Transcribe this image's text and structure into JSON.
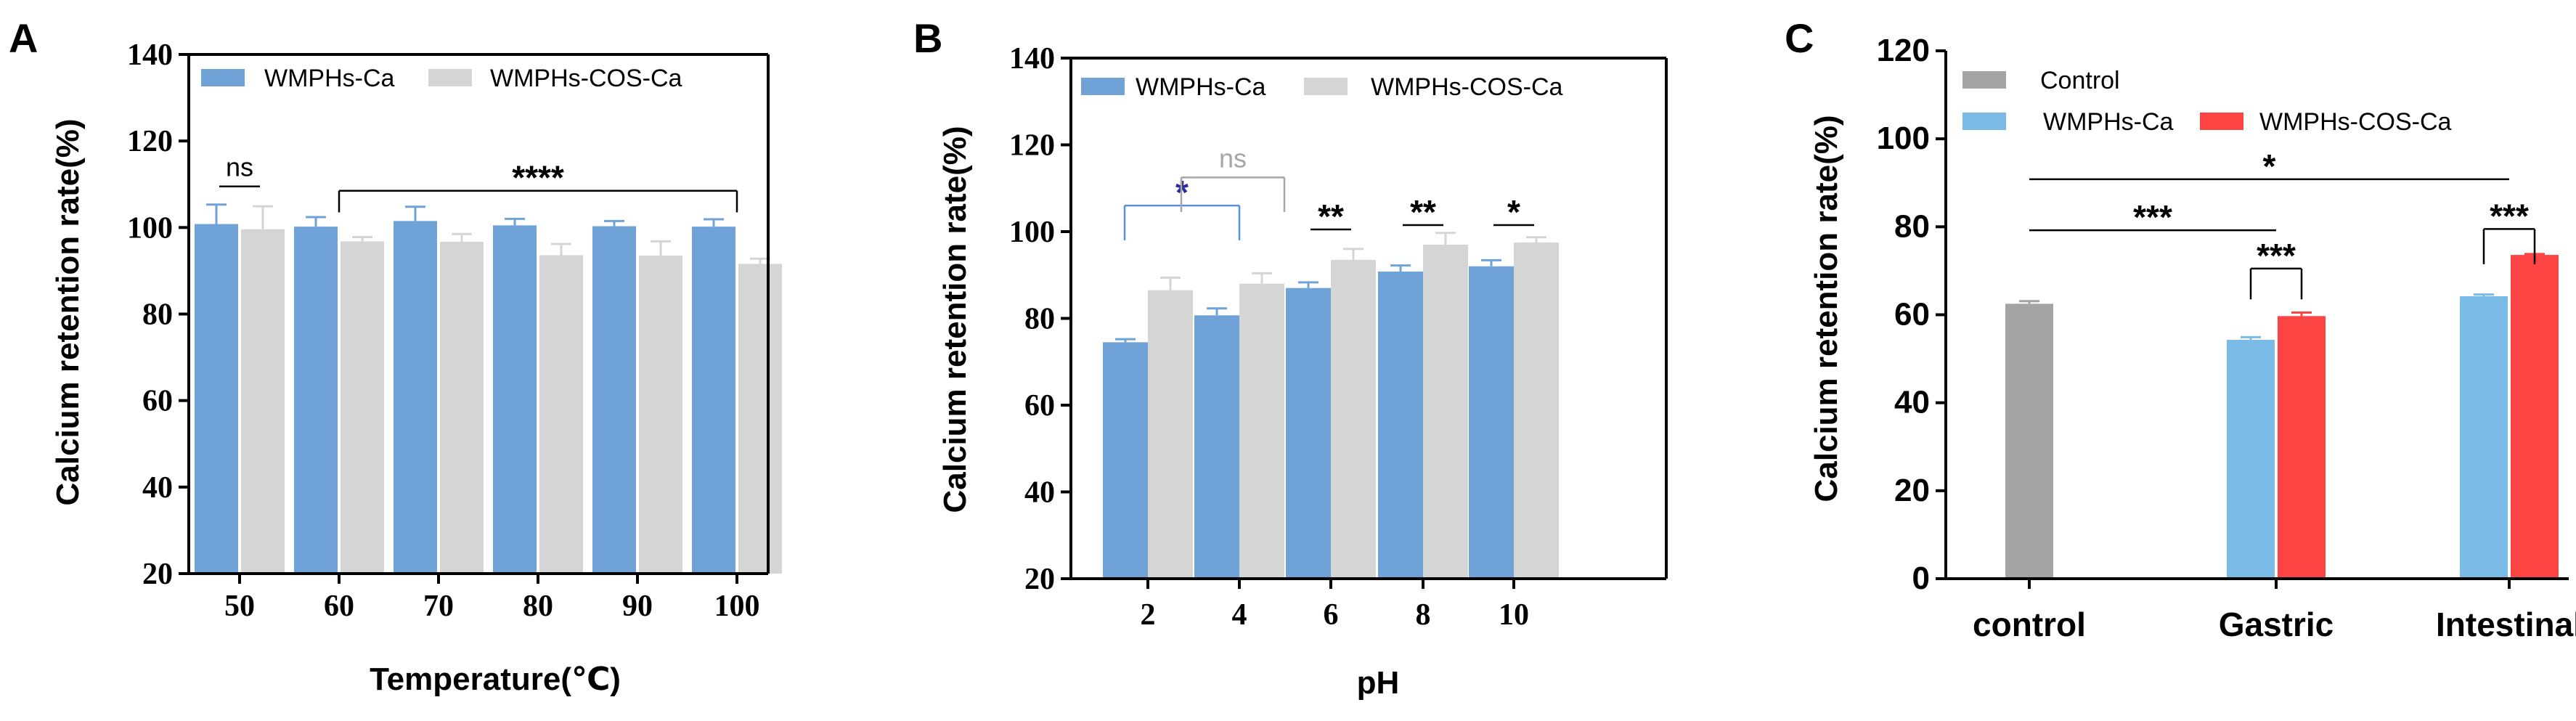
{
  "colors": {
    "wmphs": "#6fa3d8",
    "wmphs_cos": "#d4d6d5",
    "control": "#a4a3a6",
    "wmphs_c": "#79bbe6",
    "wmphs_cos_c": "#fc4443",
    "sig_blue": "#2c2b9a",
    "bracket_blue": "#5b8fd8",
    "bracket_gray": "#a6a6a6",
    "axis": "#000000"
  },
  "chart_data": [
    {
      "type": "bar",
      "panel_label": "A",
      "title": "",
      "xlabel": "Temperature(℃)",
      "ylabel": "Calcium retention rate(%)",
      "ylim": [
        20,
        140
      ],
      "yticks": [
        20,
        40,
        60,
        80,
        100,
        120,
        140
      ],
      "yticklabels": [
        "20",
        "40",
        "60",
        "80",
        "100",
        "120",
        "140"
      ],
      "categories": [
        "50",
        "60",
        "70",
        "80",
        "90",
        "100"
      ],
      "series": [
        {
          "name": "WMPHs-Ca",
          "values": [
            100.8,
            100.2,
            101.5,
            100.5,
            100.3,
            100.2
          ],
          "errors": [
            4.5,
            2.2,
            3.3,
            1.5,
            1.2,
            1.7
          ]
        },
        {
          "name": "WMPHs-COS-Ca",
          "values": [
            99.6,
            96.8,
            96.7,
            93.6,
            93.5,
            91.6
          ],
          "errors": [
            5.3,
            1.0,
            1.8,
            2.6,
            3.3,
            1.2
          ]
        }
      ],
      "legend": "top",
      "annotations": [
        {
          "text": "ns",
          "from": 0,
          "to": 0,
          "level": 109.5,
          "drop": 0,
          "color": "axis"
        },
        {
          "text": "****",
          "from": 1,
          "to": 5,
          "level": 108.5,
          "drop": 5,
          "color": "axis"
        }
      ]
    },
    {
      "type": "bar",
      "panel_label": "B",
      "title": "",
      "xlabel": "pH",
      "ylabel": "Calcium retention rate(%)",
      "ylim": [
        20,
        140
      ],
      "yticks": [
        20,
        40,
        60,
        80,
        100,
        120,
        140
      ],
      "yticklabels": [
        "20",
        "40",
        "60",
        "80",
        "100",
        "120",
        "140"
      ],
      "categories": [
        "2",
        "4",
        "6",
        "8",
        "10"
      ],
      "series": [
        {
          "name": "WMPHs-Ca",
          "values": [
            74.5,
            80.7,
            87.0,
            90.8,
            92.0
          ],
          "errors": [
            0.7,
            1.6,
            1.3,
            1.4,
            1.4
          ]
        },
        {
          "name": "WMPHs-COS-Ca",
          "values": [
            86.5,
            88.0,
            93.5,
            97.0,
            97.5
          ],
          "errors": [
            2.9,
            2.4,
            2.5,
            2.7,
            1.2
          ]
        }
      ],
      "legend": "top",
      "annotations": [
        {
          "text": "*",
          "from": 0,
          "to": 1,
          "level": 106,
          "drop": 8,
          "color": "sig_blue",
          "line": "bracket_blue"
        },
        {
          "text": "ns",
          "from": 0.6,
          "to": 1.6,
          "level": 112.5,
          "drop": 8,
          "color": "bracket_gray",
          "line": "bracket_gray"
        },
        {
          "text": "**",
          "from": 2,
          "to": 2,
          "level": 100.5,
          "drop": 0,
          "color": "axis"
        },
        {
          "text": "**",
          "from": 3,
          "to": 3,
          "level": 101.5,
          "drop": 0,
          "color": "axis"
        },
        {
          "text": "*",
          "from": 4,
          "to": 4,
          "level": 101.5,
          "drop": 0,
          "color": "axis"
        }
      ]
    },
    {
      "type": "bar",
      "panel_label": "C",
      "title": "",
      "xlabel": "",
      "ylabel": "Calcium retention rate(%)",
      "ylim": [
        0,
        120
      ],
      "yticks": [
        0,
        20,
        40,
        60,
        80,
        100,
        120
      ],
      "yticklabels": [
        "0",
        "20",
        "40",
        "60",
        "80",
        "100",
        "120"
      ],
      "categories": [
        "control",
        "Gastric",
        "Intestinal"
      ],
      "series": [
        {
          "name": "Control",
          "values": [
            62.5,
            null,
            null
          ],
          "errors": [
            0.6,
            null,
            null
          ]
        },
        {
          "name": "WMPHs-Ca",
          "values": [
            null,
            54.3,
            64.2
          ],
          "errors": [
            null,
            0.6,
            0.4
          ]
        },
        {
          "name": "WMPHs-COS-Ca",
          "values": [
            null,
            59.7,
            73.6
          ],
          "errors": [
            null,
            0.8,
            0.2
          ]
        }
      ],
      "legend": "top-left",
      "annotations": [
        {
          "text": "*",
          "from": 0,
          "to": 2,
          "level": 90.8,
          "drop": 0,
          "color": "axis"
        },
        {
          "text": "***",
          "from": 0,
          "to": 1,
          "level": 79.2,
          "drop": 0,
          "color": "axis"
        },
        {
          "text": "***",
          "from": 1,
          "to": 1,
          "level": 70.5,
          "drop": 7,
          "color": "axis"
        },
        {
          "text": "***",
          "from": 2,
          "to": 2,
          "level": 79.5,
          "drop": 8,
          "color": "axis"
        }
      ]
    }
  ]
}
